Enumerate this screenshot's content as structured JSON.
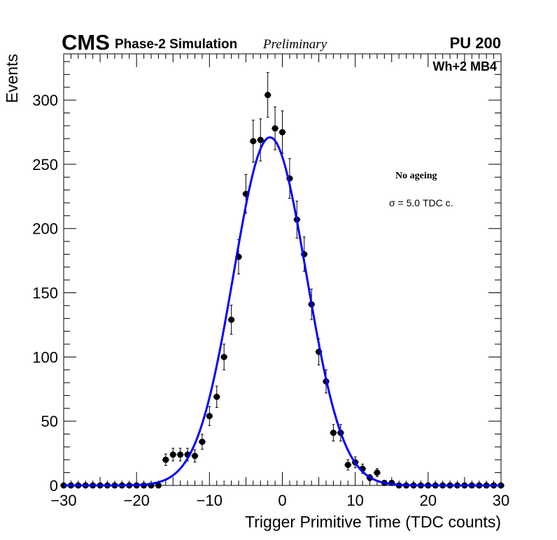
{
  "header": {
    "experiment": "CMS",
    "label": "Phase-2 Simulation",
    "status": "Preliminary",
    "pileup": "PU 200"
  },
  "annotations": {
    "chamber": "Wh+2 MB4",
    "condition": "No ageing",
    "sigma": "σ = 5.0 TDC c."
  },
  "colors": {
    "fit": "#0000ff",
    "points": "#000000",
    "frame": "#000000"
  },
  "chart_data": {
    "type": "scatter",
    "title": "",
    "xlabel": "Trigger Primitive Time (TDC counts)",
    "ylabel": "Events",
    "xlim": [
      -30,
      30
    ],
    "ylim": [
      0,
      336
    ],
    "xticks_major": [
      -30,
      -20,
      -10,
      0,
      10,
      20,
      30
    ],
    "xtick_labels": [
      "−30",
      "−20",
      "−10",
      "0",
      "10",
      "20",
      "30"
    ],
    "yticks_major": [
      0,
      50,
      100,
      150,
      200,
      250,
      300
    ],
    "ytick_labels": [
      "0",
      "50",
      "100",
      "150",
      "200",
      "250",
      "300"
    ],
    "series": [
      {
        "name": "Trigger primitives",
        "x": [
          -30,
          -29,
          -28,
          -27,
          -26,
          -25,
          -24,
          -23,
          -22,
          -21,
          -20,
          -19,
          -18,
          -17,
          -16,
          -15,
          -14,
          -13,
          -12,
          -11,
          -10,
          -9,
          -8,
          -7,
          -6,
          -5,
          -4,
          -3,
          -2,
          -1,
          0,
          1,
          2,
          3,
          4,
          5,
          6,
          7,
          8,
          9,
          10,
          11,
          12,
          13,
          14,
          15,
          16,
          17,
          18,
          19,
          20,
          21,
          22,
          23,
          24,
          25,
          26,
          27,
          28,
          29,
          30
        ],
        "y": [
          0,
          0,
          0,
          0,
          0,
          0,
          0,
          0,
          0,
          0,
          0,
          0,
          0,
          0,
          20,
          24,
          24,
          24,
          23,
          34,
          54,
          69,
          100,
          129,
          178,
          227,
          268,
          269,
          304,
          278,
          275,
          239,
          207,
          180,
          141,
          104,
          81,
          41,
          41,
          16,
          18,
          13,
          6,
          10,
          2,
          2,
          0,
          0,
          0,
          0,
          0,
          0,
          0,
          0,
          0,
          0,
          0,
          0,
          0,
          0,
          0
        ]
      },
      {
        "name": "Gaussian fit",
        "function": "gaussian",
        "amplitude": 271,
        "mean": -1.7,
        "sigma": 5.0,
        "range": [
          -30,
          30
        ]
      }
    ]
  }
}
